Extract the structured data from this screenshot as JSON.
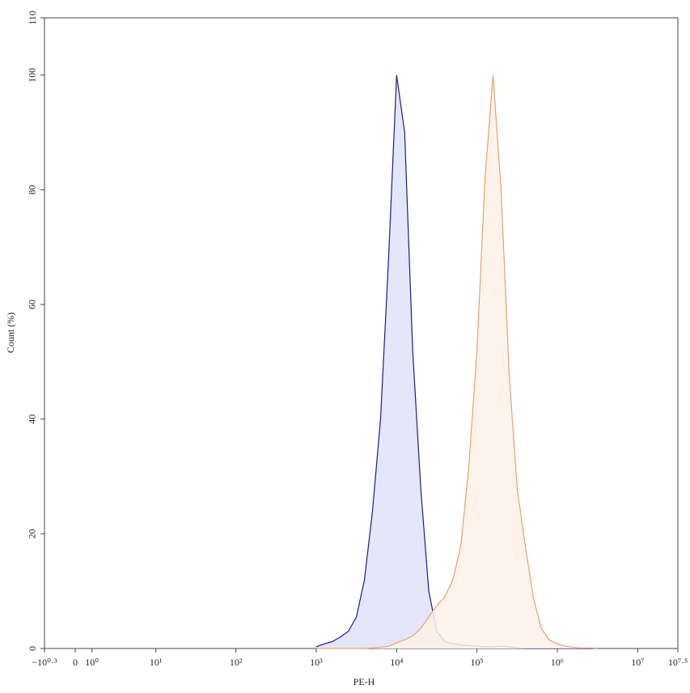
{
  "chart_data": {
    "type": "histogram-overlay",
    "x_label": "PE-H",
    "y_label": "Count (%)",
    "xscale": "biexponential",
    "xlim": [
      -1.995,
      31622777
    ],
    "xticks": [
      {
        "value": -1.995,
        "label": "−10⁰·³"
      },
      0,
      {
        "value": 1,
        "label": "10⁰"
      },
      {
        "value": 10,
        "label": "10¹"
      },
      {
        "value": 100,
        "label": "10²"
      },
      {
        "value": 1000,
        "label": "10³"
      },
      {
        "value": 10000,
        "label": "10⁴"
      },
      {
        "value": 100000,
        "label": "10⁵"
      },
      {
        "value": 1000000,
        "label": "10⁶"
      },
      {
        "value": 10000000,
        "label": "10⁷"
      },
      {
        "value": 31622777,
        "label": "10⁷·⁵"
      }
    ],
    "ylim": [
      0,
      110
    ],
    "yticks": [
      0,
      20,
      40,
      60,
      80,
      100,
      110
    ],
    "x": [
      1000,
      1259,
      1585,
      1995,
      2512,
      3162,
      3981,
      5012,
      6310,
      7943,
      10000,
      12589,
      15849,
      19953,
      25119,
      31623,
      39811,
      50119,
      63096,
      79433,
      100000,
      125893,
      158489,
      199526,
      251189,
      316228,
      398107,
      501187,
      630957,
      794328,
      1000000,
      1258925,
      1584893,
      1995262,
      2511886,
      3162278
    ],
    "series": [
      {
        "color": "#1c1c8a",
        "fill": "#e2e2fa",
        "values": [
          0.3,
          0.8,
          1.2,
          2,
          3,
          5.5,
          12,
          24,
          40,
          68,
          100,
          90,
          52,
          28,
          10,
          3,
          1.2,
          0.8,
          0.6,
          0.5,
          0.4,
          0.3,
          0.3,
          0.4,
          0.3,
          0.1,
          0,
          0,
          0,
          0,
          0,
          0,
          0,
          0,
          0,
          0
        ]
      },
      {
        "color": "#e8a070",
        "fill": "#fdf1e6",
        "values": [
          0,
          0,
          0,
          0,
          0,
          0,
          0,
          0.1,
          0.2,
          0.4,
          1,
          1.5,
          2.2,
          3.5,
          5.5,
          7.5,
          9,
          12,
          18,
          32,
          52,
          82,
          100,
          80,
          48,
          28,
          18,
          9,
          3.5,
          1.5,
          0.8,
          0.4,
          0.2,
          0.1,
          0.1,
          0
        ]
      }
    ]
  }
}
